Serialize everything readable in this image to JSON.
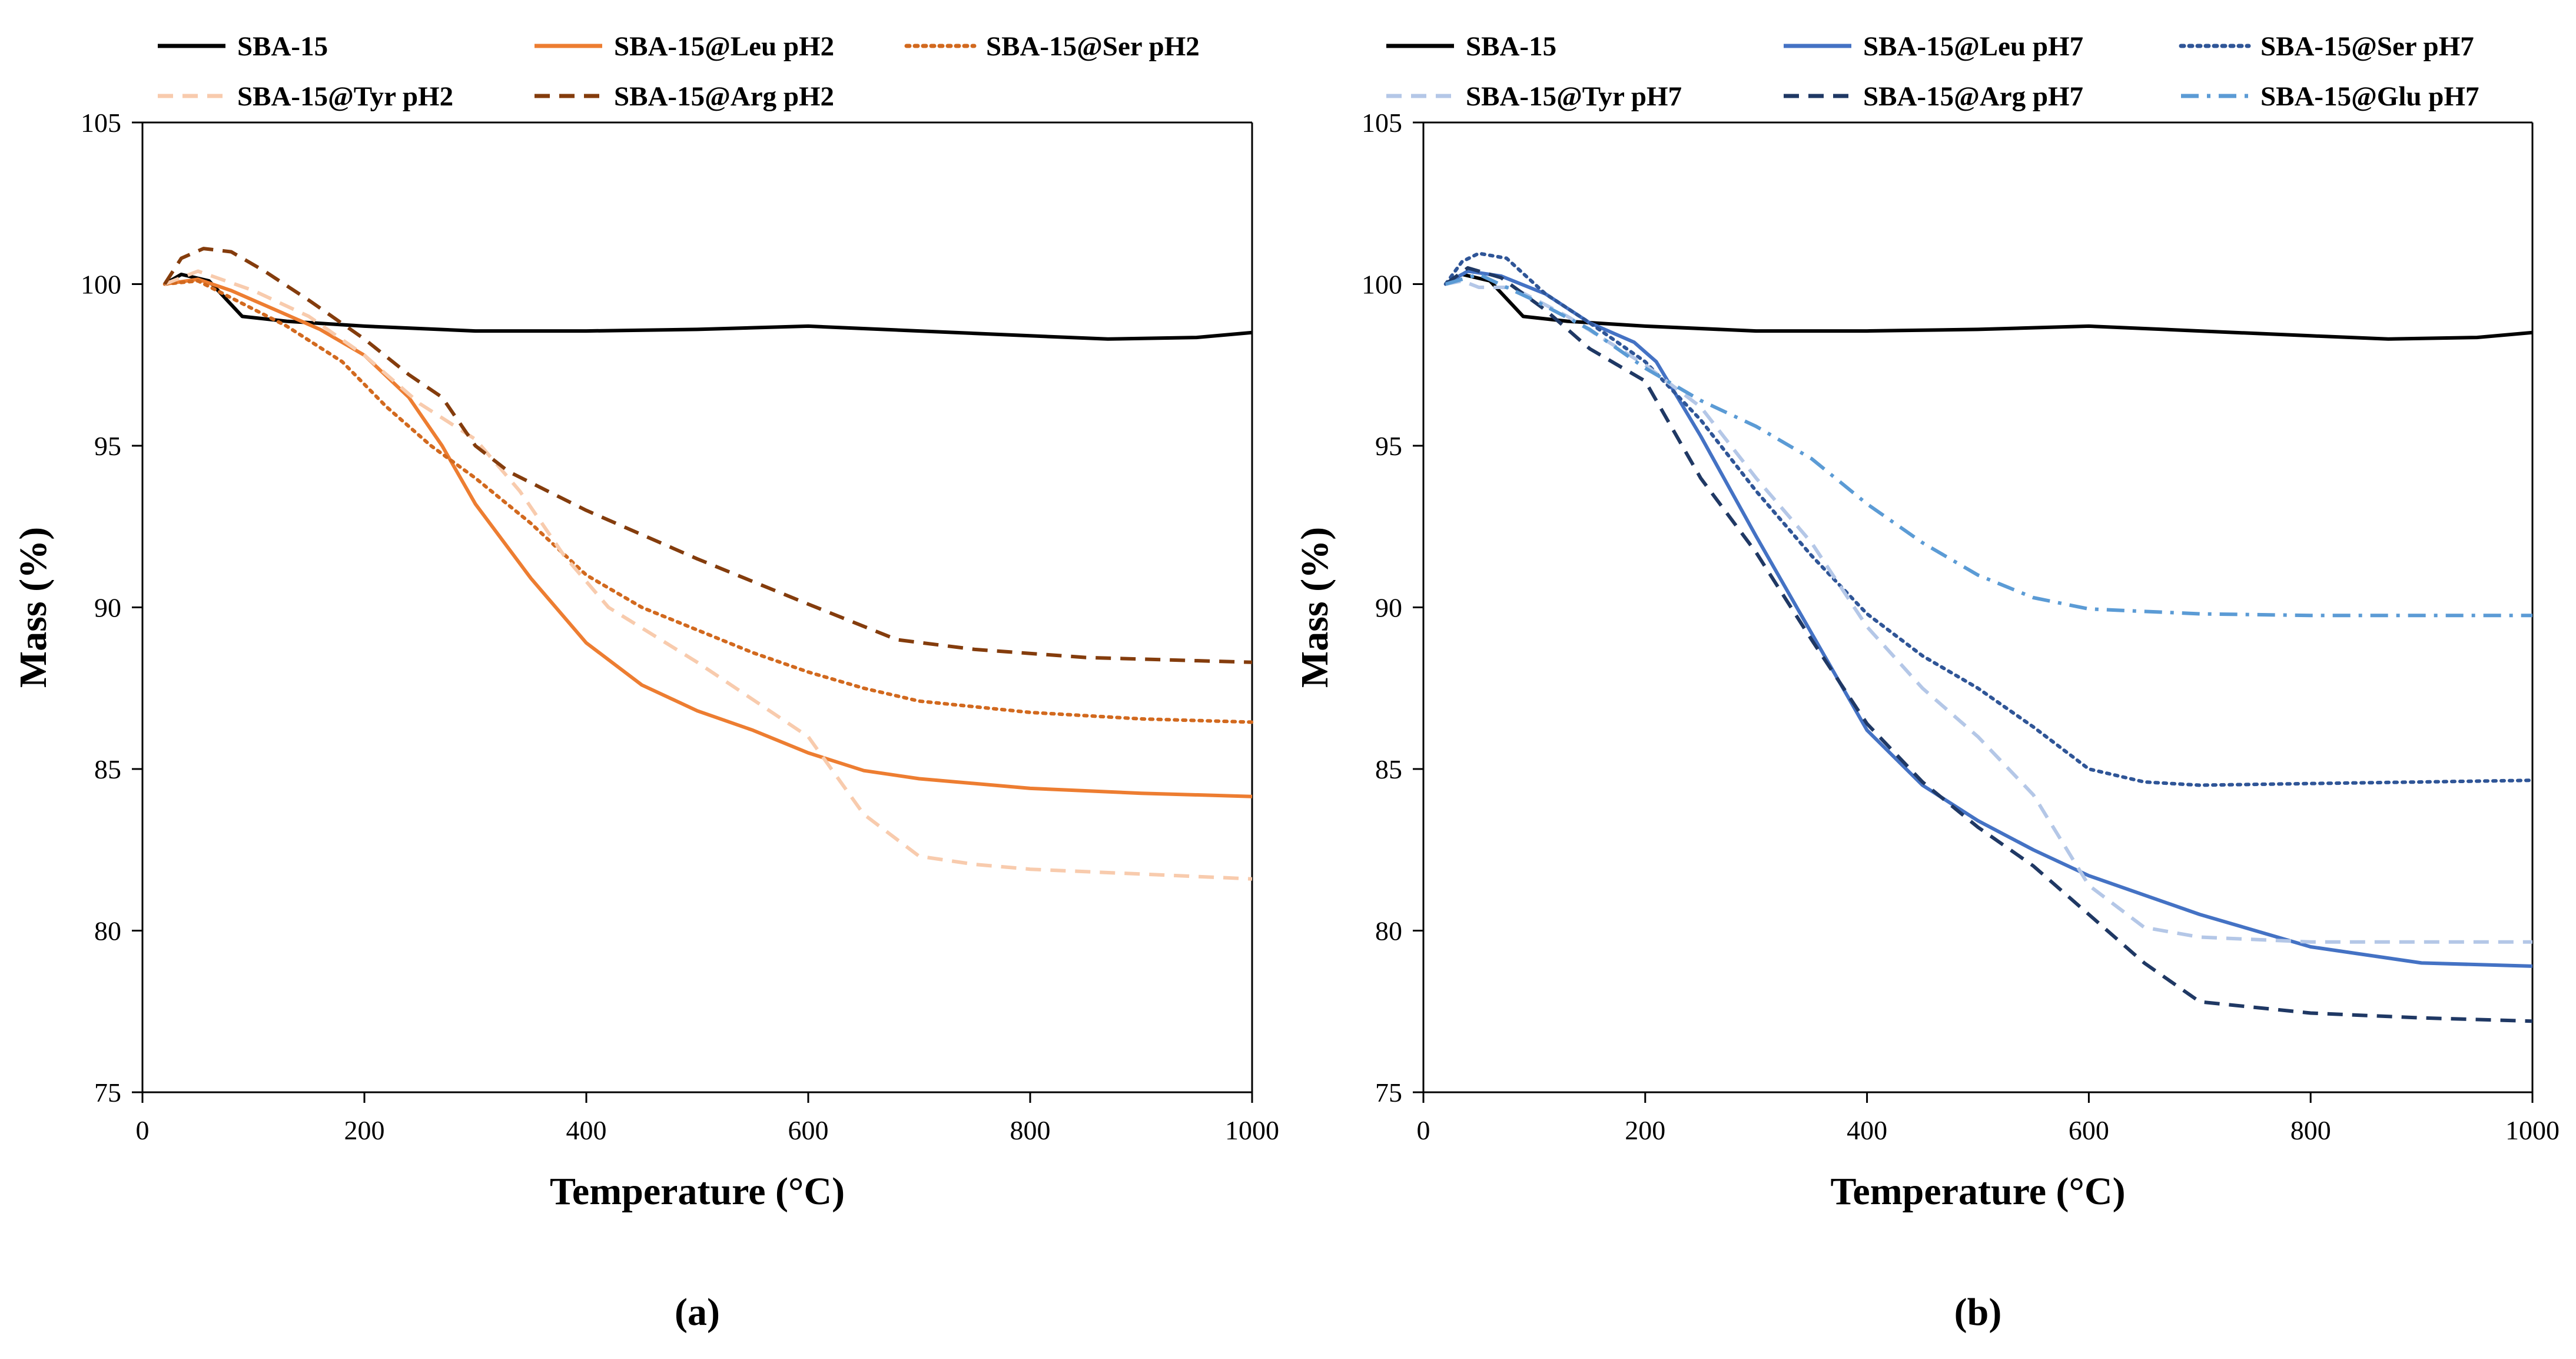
{
  "chart_data": [
    {
      "type": "line",
      "panel_label": "(a)",
      "xlabel": "Temperature (°C)",
      "ylabel": "Mass (%)",
      "xlim": [
        0,
        1000
      ],
      "ylim": [
        75,
        105
      ],
      "xticks": [
        0,
        200,
        400,
        600,
        800,
        1000
      ],
      "yticks": [
        75,
        80,
        85,
        90,
        95,
        100,
        105
      ],
      "grid": false,
      "legend": "top",
      "series": [
        {
          "name": "SBA-15",
          "color": "#000000",
          "dash": "solid",
          "points": [
            [
              20,
              100.0
            ],
            [
              35,
              100.3
            ],
            [
              60,
              100.1
            ],
            [
              90,
              99.0
            ],
            [
              130,
              98.85
            ],
            [
              200,
              98.7
            ],
            [
              300,
              98.55
            ],
            [
              400,
              98.55
            ],
            [
              500,
              98.6
            ],
            [
              600,
              98.7
            ],
            [
              700,
              98.55
            ],
            [
              800,
              98.4
            ],
            [
              870,
              98.3
            ],
            [
              950,
              98.35
            ],
            [
              1000,
              98.5
            ]
          ]
        },
        {
          "name": "SBA-15@Leu pH2",
          "color": "#ED7D31",
          "dash": "solid",
          "points": [
            [
              20,
              100.0
            ],
            [
              50,
              100.15
            ],
            [
              80,
              99.8
            ],
            [
              120,
              99.2
            ],
            [
              160,
              98.6
            ],
            [
              200,
              97.8
            ],
            [
              240,
              96.5
            ],
            [
              270,
              95.0
            ],
            [
              300,
              93.2
            ],
            [
              350,
              90.9
            ],
            [
              400,
              88.9
            ],
            [
              450,
              87.6
            ],
            [
              500,
              86.8
            ],
            [
              550,
              86.2
            ],
            [
              600,
              85.5
            ],
            [
              650,
              84.95
            ],
            [
              700,
              84.7
            ],
            [
              800,
              84.4
            ],
            [
              900,
              84.25
            ],
            [
              1000,
              84.15
            ]
          ]
        },
        {
          "name": "SBA-15@Ser pH2",
          "color": "#D2691E",
          "dash": "dot",
          "points": [
            [
              20,
              100.0
            ],
            [
              50,
              100.1
            ],
            [
              90,
              99.4
            ],
            [
              130,
              98.7
            ],
            [
              180,
              97.6
            ],
            [
              220,
              96.2
            ],
            [
              260,
              95.0
            ],
            [
              300,
              94.0
            ],
            [
              350,
              92.6
            ],
            [
              400,
              91.0
            ],
            [
              450,
              90.0
            ],
            [
              500,
              89.3
            ],
            [
              550,
              88.6
            ],
            [
              600,
              88.0
            ],
            [
              650,
              87.5
            ],
            [
              700,
              87.1
            ],
            [
              800,
              86.75
            ],
            [
              900,
              86.55
            ],
            [
              1000,
              86.45
            ]
          ]
        },
        {
          "name": "SBA-15@Tyr pH2",
          "color": "#F8CBAD",
          "dash": "dash",
          "points": [
            [
              20,
              100.0
            ],
            [
              50,
              100.4
            ],
            [
              100,
              99.8
            ],
            [
              150,
              99.0
            ],
            [
              200,
              97.8
            ],
            [
              250,
              96.3
            ],
            [
              300,
              95.2
            ],
            [
              340,
              93.6
            ],
            [
              380,
              91.6
            ],
            [
              420,
              90.0
            ],
            [
              500,
              88.3
            ],
            [
              600,
              86.0
            ],
            [
              650,
              83.6
            ],
            [
              700,
              82.3
            ],
            [
              750,
              82.05
            ],
            [
              800,
              81.9
            ],
            [
              900,
              81.75
            ],
            [
              1000,
              81.6
            ]
          ]
        },
        {
          "name": "SBA-15@Arg pH2",
          "color": "#843C0C",
          "dash": "dash",
          "points": [
            [
              20,
              100.0
            ],
            [
              35,
              100.8
            ],
            [
              55,
              101.1
            ],
            [
              80,
              101.0
            ],
            [
              110,
              100.4
            ],
            [
              150,
              99.5
            ],
            [
              200,
              98.3
            ],
            [
              240,
              97.2
            ],
            [
              270,
              96.5
            ],
            [
              300,
              95.0
            ],
            [
              330,
              94.2
            ],
            [
              400,
              93.0
            ],
            [
              500,
              91.5
            ],
            [
              600,
              90.1
            ],
            [
              680,
              89.0
            ],
            [
              750,
              88.7
            ],
            [
              850,
              88.45
            ],
            [
              1000,
              88.3
            ]
          ]
        }
      ]
    },
    {
      "type": "line",
      "panel_label": "(b)",
      "xlabel": "Temperature (°C)",
      "ylabel": "Mass (%)",
      "xlim": [
        0,
        1000
      ],
      "ylim": [
        75,
        105
      ],
      "xticks": [
        0,
        200,
        400,
        600,
        800,
        1000
      ],
      "yticks": [
        75,
        80,
        85,
        90,
        95,
        100,
        105
      ],
      "grid": false,
      "legend": "top",
      "series": [
        {
          "name": "SBA-15",
          "color": "#000000",
          "dash": "solid",
          "points": [
            [
              20,
              100.0
            ],
            [
              35,
              100.3
            ],
            [
              60,
              100.1
            ],
            [
              90,
              99.0
            ],
            [
              130,
              98.85
            ],
            [
              200,
              98.7
            ],
            [
              300,
              98.55
            ],
            [
              400,
              98.55
            ],
            [
              500,
              98.6
            ],
            [
              600,
              98.7
            ],
            [
              700,
              98.55
            ],
            [
              800,
              98.4
            ],
            [
              870,
              98.3
            ],
            [
              950,
              98.35
            ],
            [
              1000,
              98.5
            ]
          ]
        },
        {
          "name": "SBA-15@Leu pH7",
          "color": "#4472C4",
          "dash": "solid",
          "points": [
            [
              20,
              100.0
            ],
            [
              40,
              100.4
            ],
            [
              70,
              100.25
            ],
            [
              110,
              99.7
            ],
            [
              150,
              98.8
            ],
            [
              190,
              98.2
            ],
            [
              210,
              97.6
            ],
            [
              250,
              95.3
            ],
            [
              300,
              92.2
            ],
            [
              350,
              89.2
            ],
            [
              400,
              86.2
            ],
            [
              450,
              84.5
            ],
            [
              500,
              83.4
            ],
            [
              550,
              82.5
            ],
            [
              600,
              81.7
            ],
            [
              700,
              80.5
            ],
            [
              800,
              79.5
            ],
            [
              900,
              79.0
            ],
            [
              1000,
              78.9
            ]
          ]
        },
        {
          "name": "SBA-15@Ser pH7",
          "color": "#2F5597",
          "dash": "dot",
          "points": [
            [
              20,
              100.0
            ],
            [
              35,
              100.7
            ],
            [
              50,
              100.95
            ],
            [
              75,
              100.8
            ],
            [
              110,
              99.7
            ],
            [
              150,
              98.8
            ],
            [
              200,
              97.6
            ],
            [
              250,
              95.8
            ],
            [
              300,
              93.6
            ],
            [
              350,
              91.6
            ],
            [
              400,
              89.8
            ],
            [
              450,
              88.5
            ],
            [
              500,
              87.5
            ],
            [
              550,
              86.3
            ],
            [
              600,
              85.0
            ],
            [
              650,
              84.6
            ],
            [
              700,
              84.5
            ],
            [
              800,
              84.55
            ],
            [
              900,
              84.6
            ],
            [
              1000,
              84.65
            ]
          ]
        },
        {
          "name": "SBA-15@Tyr pH7",
          "color": "#B4C7E7",
          "dash": "dash",
          "points": [
            [
              20,
              100.0
            ],
            [
              35,
              100.1
            ],
            [
              50,
              99.9
            ],
            [
              80,
              99.9
            ],
            [
              130,
              99.0
            ],
            [
              200,
              97.5
            ],
            [
              250,
              96.2
            ],
            [
              300,
              94.0
            ],
            [
              350,
              92.0
            ],
            [
              400,
              89.4
            ],
            [
              450,
              87.5
            ],
            [
              500,
              86.0
            ],
            [
              550,
              84.2
            ],
            [
              600,
              81.4
            ],
            [
              650,
              80.1
            ],
            [
              700,
              79.8
            ],
            [
              800,
              79.65
            ],
            [
              900,
              79.65
            ],
            [
              1000,
              79.65
            ]
          ]
        },
        {
          "name": "SBA-15@Arg pH7",
          "color": "#1F3864",
          "dash": "dash",
          "points": [
            [
              20,
              100.0
            ],
            [
              40,
              100.5
            ],
            [
              70,
              100.2
            ],
            [
              110,
              99.2
            ],
            [
              150,
              98.0
            ],
            [
              200,
              97.0
            ],
            [
              250,
              94.0
            ],
            [
              300,
              91.7
            ],
            [
              350,
              89.0
            ],
            [
              400,
              86.4
            ],
            [
              450,
              84.6
            ],
            [
              500,
              83.2
            ],
            [
              550,
              82.0
            ],
            [
              600,
              80.5
            ],
            [
              650,
              79.0
            ],
            [
              700,
              77.8
            ],
            [
              800,
              77.45
            ],
            [
              900,
              77.3
            ],
            [
              1000,
              77.2
            ]
          ]
        },
        {
          "name": "SBA-15@Glu pH7",
          "color": "#5B9BD5",
          "dash": "dashdot",
          "points": [
            [
              20,
              100.0
            ],
            [
              50,
              100.3
            ],
            [
              100,
              99.5
            ],
            [
              150,
              98.6
            ],
            [
              200,
              97.4
            ],
            [
              250,
              96.4
            ],
            [
              300,
              95.6
            ],
            [
              350,
              94.6
            ],
            [
              400,
              93.2
            ],
            [
              450,
              92.0
            ],
            [
              500,
              91.0
            ],
            [
              550,
              90.3
            ],
            [
              600,
              89.95
            ],
            [
              700,
              89.8
            ],
            [
              800,
              89.75
            ],
            [
              900,
              89.75
            ],
            [
              1000,
              89.75
            ]
          ]
        }
      ]
    }
  ]
}
